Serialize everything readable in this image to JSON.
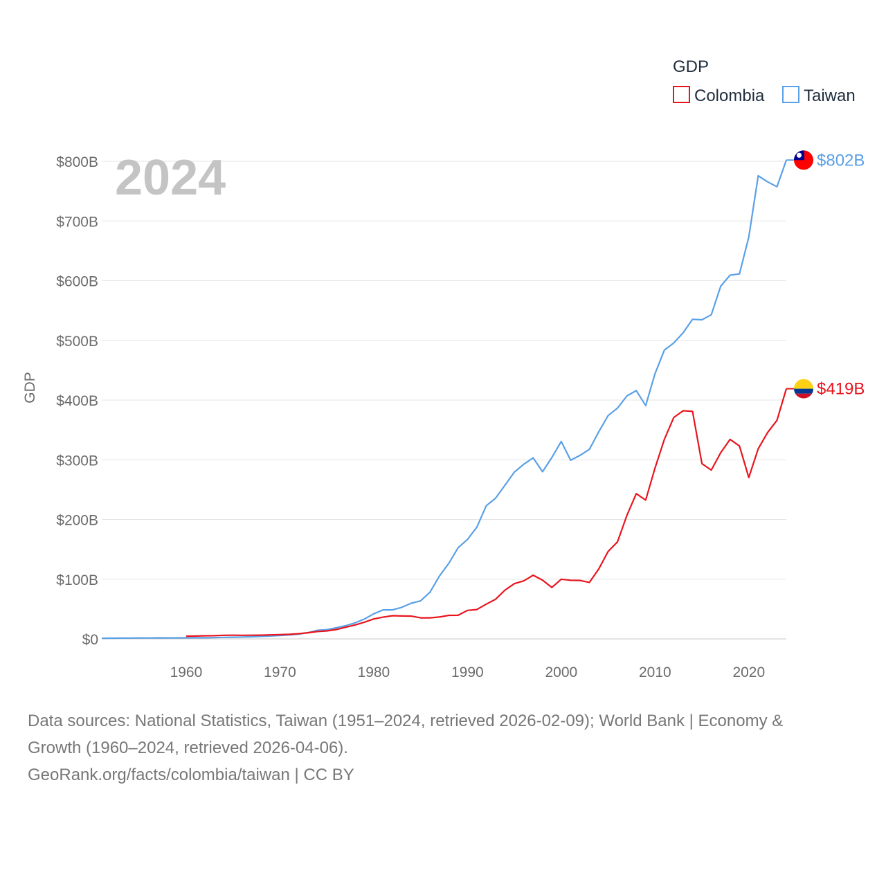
{
  "chart_data": {
    "type": "line",
    "title": "GDP",
    "ylabel": "GDP",
    "xlabel": "",
    "current_year_label": "2024",
    "xlim": [
      1951,
      2024
    ],
    "ylim": [
      0,
      800
    ],
    "x_ticks": [
      1960,
      1970,
      1980,
      1990,
      2000,
      2010,
      2020
    ],
    "y_ticks": [
      {
        "value": 0,
        "label": "$0"
      },
      {
        "value": 100,
        "label": "$100B"
      },
      {
        "value": 200,
        "label": "$200B"
      },
      {
        "value": 300,
        "label": "$300B"
      },
      {
        "value": 400,
        "label": "$400B"
      },
      {
        "value": 500,
        "label": "$500B"
      },
      {
        "value": 600,
        "label": "$600B"
      },
      {
        "value": 700,
        "label": "$700B"
      },
      {
        "value": 800,
        "label": "$800B"
      }
    ],
    "legend": {
      "title": "GDP",
      "position": "top-right"
    },
    "series": [
      {
        "name": "Colombia",
        "color": "#e8141e",
        "end_label": "$419B",
        "flag": "colombia-flag",
        "x": [
          1960,
          1961,
          1962,
          1963,
          1964,
          1965,
          1966,
          1967,
          1968,
          1969,
          1970,
          1971,
          1972,
          1973,
          1974,
          1975,
          1976,
          1977,
          1978,
          1979,
          1980,
          1981,
          1982,
          1983,
          1984,
          1985,
          1986,
          1987,
          1988,
          1989,
          1990,
          1991,
          1992,
          1993,
          1994,
          1995,
          1996,
          1997,
          1998,
          1999,
          2000,
          2001,
          2002,
          2003,
          2004,
          2005,
          2006,
          2007,
          2008,
          2009,
          2010,
          2011,
          2012,
          2013,
          2014,
          2015,
          2016,
          2017,
          2018,
          2019,
          2020,
          2021,
          2022,
          2023,
          2024
        ],
        "values": [
          4.5,
          4.8,
          5.2,
          5.3,
          6.0,
          6.2,
          6.0,
          6.1,
          6.3,
          6.7,
          7.1,
          7.7,
          8.7,
          10.3,
          12.3,
          13.3,
          15.6,
          19.5,
          23.3,
          27.9,
          33.4,
          36.4,
          38.8,
          38.4,
          38.2,
          35.2,
          35.2,
          36.6,
          39.4,
          39.5,
          47.8,
          49.2,
          58.2,
          66.4,
          81.7,
          92.5,
          97.2,
          106.7,
          98.4,
          86.2,
          99.9,
          98.2,
          97.9,
          94.6,
          117.1,
          146.6,
          162.6,
          207.0,
          243.2,
          232.5,
          286.1,
          334.5,
          370.9,
          382.1,
          381.1,
          293.5,
          282.8,
          311.9,
          334.2,
          323.1,
          270.3,
          318.5,
          345.6,
          366.1,
          419.0
        ]
      },
      {
        "name": "Taiwan",
        "color": "#5aa0e6",
        "end_label": "$802B",
        "flag": "taiwan-flag",
        "x": [
          1951,
          1952,
          1953,
          1954,
          1955,
          1956,
          1957,
          1958,
          1959,
          1960,
          1961,
          1962,
          1963,
          1964,
          1965,
          1966,
          1967,
          1968,
          1969,
          1970,
          1971,
          1972,
          1973,
          1974,
          1975,
          1976,
          1977,
          1978,
          1979,
          1980,
          1981,
          1982,
          1983,
          1984,
          1985,
          1986,
          1987,
          1988,
          1989,
          1990,
          1991,
          1992,
          1993,
          1994,
          1995,
          1996,
          1997,
          1998,
          1999,
          2000,
          2001,
          2002,
          2003,
          2004,
          2005,
          2006,
          2007,
          2008,
          2009,
          2010,
          2011,
          2012,
          2013,
          2014,
          2015,
          2016,
          2017,
          2018,
          2019,
          2020,
          2021,
          2022,
          2023,
          2024
        ],
        "values": [
          1.0,
          1.2,
          1.3,
          1.4,
          1.6,
          1.5,
          1.7,
          1.6,
          1.7,
          1.7,
          1.8,
          1.9,
          2.1,
          2.5,
          2.8,
          3.1,
          3.6,
          4.2,
          4.9,
          5.7,
          6.6,
          7.9,
          10.5,
          14.4,
          15.4,
          18.5,
          22.0,
          26.8,
          33.2,
          42.0,
          48.6,
          48.6,
          52.9,
          59.7,
          63.6,
          78.2,
          105.0,
          126.4,
          152.7,
          166.6,
          187.1,
          222.9,
          235.8,
          257.5,
          279.4,
          292.5,
          303.3,
          280.0,
          303.9,
          330.7,
          299.3,
          307.4,
          317.4,
          346.9,
          374.1,
          386.5,
          406.9,
          415.9,
          390.8,
          444.3,
          483.9,
          495.6,
          512.9,
          535.3,
          534.5,
          543.0,
          590.7,
          609.2,
          611.4,
          673.3,
          775.8,
          765.6,
          757.3,
          802.0
        ]
      }
    ]
  },
  "footer": {
    "line1": "Data sources: National Statistics, Taiwan (1951–2024, retrieved 2026-02-09); World Bank | Economy &",
    "line2": "Growth (1960–2024, retrieved 2026-04-06).",
    "line3": "GeoRank.org/facts/colombia/taiwan | CC BY"
  }
}
